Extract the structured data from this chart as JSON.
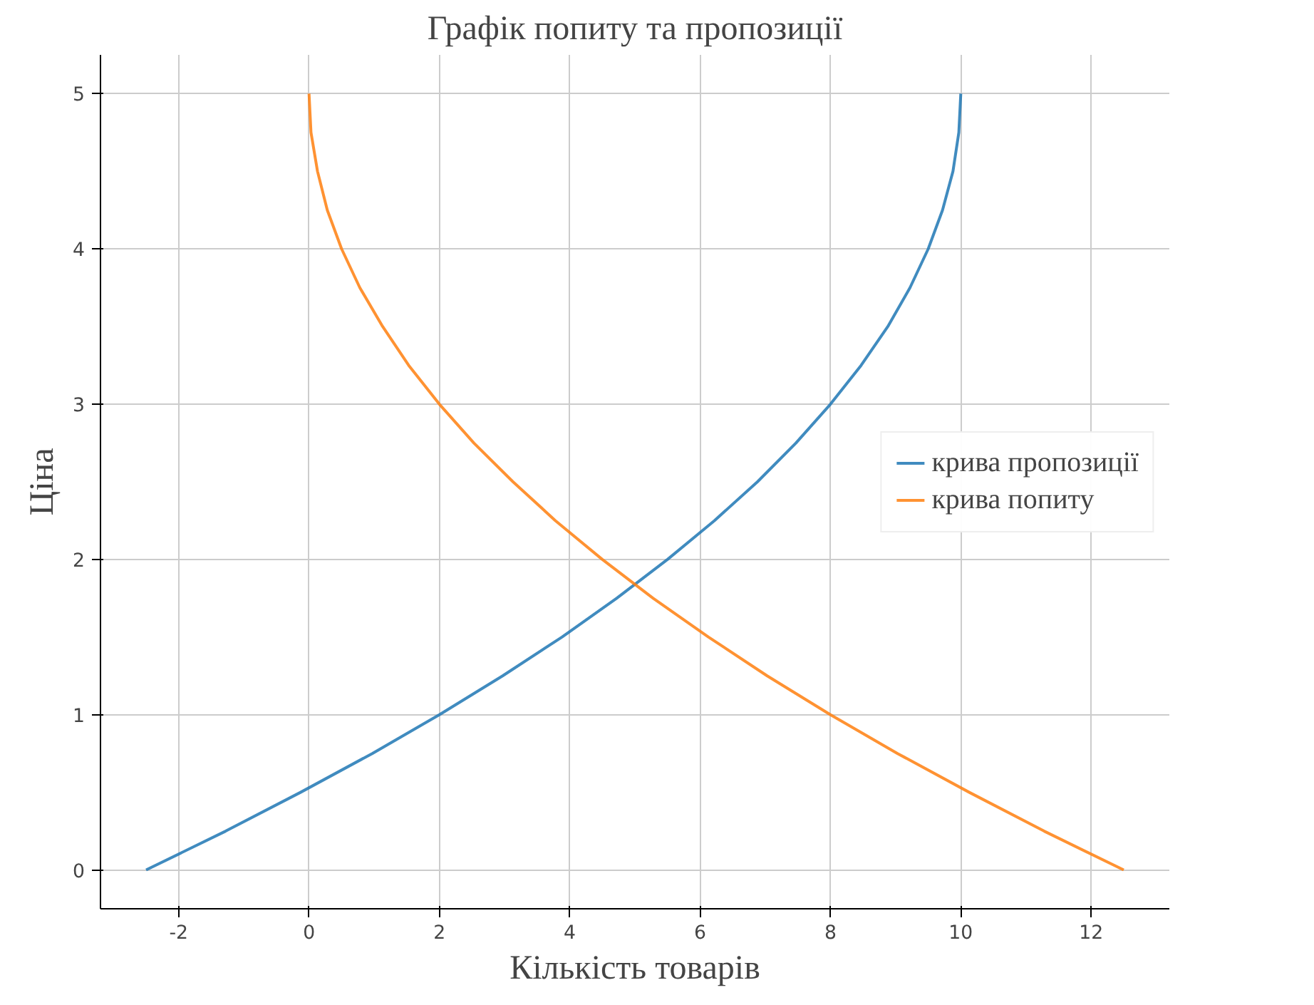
{
  "chart_data": {
    "type": "line",
    "title": "Графік попиту та пропозиції",
    "xlabel": "Кількість товарів",
    "ylabel": "Ціна",
    "series": [
      {
        "name": "крива пропозиції",
        "color": "#1f77b4",
        "x": [
          -2.5,
          -1.28,
          -0.13,
          0.97,
          2,
          2.97,
          3.88,
          4.72,
          5.5,
          6.22,
          6.88,
          7.47,
          8,
          8.47,
          8.88,
          9.22,
          9.5,
          9.72,
          9.88,
          9.97,
          10
        ],
        "values": [
          0,
          0.25,
          0.5,
          0.75,
          1,
          1.25,
          1.5,
          1.75,
          2,
          2.25,
          2.5,
          2.75,
          3,
          3.25,
          3.5,
          3.75,
          4,
          4.25,
          4.5,
          4.75,
          5
        ]
      },
      {
        "name": "крива попиту",
        "color": "#ff7f0e",
        "x": [
          12.5,
          11.28,
          10.13,
          9.03,
          8,
          7.03,
          6.13,
          5.28,
          4.5,
          3.78,
          3.13,
          2.53,
          2,
          1.53,
          1.13,
          0.78,
          0.5,
          0.28,
          0.13,
          0.03,
          0
        ],
        "values": [
          0,
          0.25,
          0.5,
          0.75,
          1,
          1.25,
          1.5,
          1.75,
          2,
          2.25,
          2.5,
          2.75,
          3,
          3.25,
          3.5,
          3.75,
          4,
          4.25,
          4.5,
          4.75,
          5
        ]
      }
    ],
    "xlim": [
      -3.2,
      13.2
    ],
    "ylim": [
      -0.25,
      5.25
    ],
    "xticks": [
      -2,
      0,
      2,
      4,
      6,
      8,
      10,
      12
    ],
    "yticks": [
      0,
      1,
      2,
      3,
      4,
      5
    ],
    "grid": true,
    "legend": "right",
    "line_style": "solid",
    "marker": "none"
  }
}
